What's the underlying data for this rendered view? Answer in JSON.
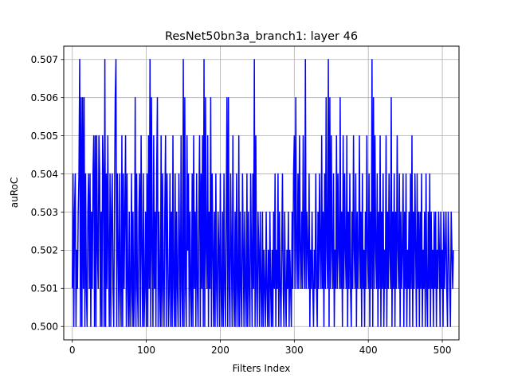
{
  "chart_data": {
    "type": "line",
    "title": "ResNet50bn3a_branch1: layer 46",
    "xlabel": "Filters Index",
    "ylabel": "auRoC",
    "xlim": [
      -11.55,
      522.55
    ],
    "ylim": [
      0.49965,
      0.50735
    ],
    "xticks": [
      0,
      100,
      200,
      300,
      400,
      500
    ],
    "yticks": [
      0.5,
      0.501,
      0.502,
      0.503,
      0.504,
      0.505,
      0.506,
      0.507
    ],
    "ytick_labels": [
      "0.500",
      "0.501",
      "0.502",
      "0.503",
      "0.504",
      "0.505",
      "0.506",
      "0.507"
    ],
    "grid": true,
    "line_color": "#0000ff",
    "series": [
      {
        "values": [
          0.501,
          0.504,
          0.5,
          0.503,
          0.504,
          0.5,
          0.502,
          0.501,
          0.503,
          0.504,
          0.507,
          0.5,
          0.506,
          0.5,
          0.506,
          0.501,
          0.506,
          0.5,
          0.504,
          0.501,
          0.5,
          0.503,
          0.504,
          0.501,
          0.504,
          0.5,
          0.503,
          0.501,
          0.504,
          0.505,
          0.5,
          0.505,
          0.5,
          0.505,
          0.502,
          0.501,
          0.505,
          0.504,
          0.5,
          0.503,
          0.5,
          0.505,
          0.504,
          0.5,
          0.507,
          0.5,
          0.504,
          0.501,
          0.505,
          0.502,
          0.5,
          0.504,
          0.5,
          0.503,
          0.504,
          0.501,
          0.5,
          0.503,
          0.506,
          0.507,
          0.5,
          0.504,
          0.502,
          0.5,
          0.504,
          0.501,
          0.5,
          0.505,
          0.5,
          0.504,
          0.501,
          0.503,
          0.505,
          0.5,
          0.504,
          0.501,
          0.5,
          0.503,
          0.5,
          0.501,
          0.504,
          0.5,
          0.503,
          0.5,
          0.501,
          0.506,
          0.5,
          0.504,
          0.501,
          0.5,
          0.503,
          0.504,
          0.5,
          0.505,
          0.502,
          0.5,
          0.504,
          0.5,
          0.501,
          0.503,
          0.5,
          0.504,
          0.5,
          0.505,
          0.501,
          0.507,
          0.5,
          0.506,
          0.502,
          0.5,
          0.505,
          0.501,
          0.503,
          0.5,
          0.504,
          0.506,
          0.5,
          0.503,
          0.501,
          0.5,
          0.505,
          0.5,
          0.504,
          0.501,
          0.5,
          0.503,
          0.505,
          0.5,
          0.504,
          0.502,
          0.5,
          0.501,
          0.504,
          0.5,
          0.503,
          0.5,
          0.505,
          0.501,
          0.5,
          0.504,
          0.5,
          0.503,
          0.501,
          0.5,
          0.504,
          0.502,
          0.5,
          0.505,
          0.501,
          0.5,
          0.507,
          0.5,
          0.506,
          0.501,
          0.5,
          0.505,
          0.502,
          0.504,
          0.5,
          0.503,
          0.501,
          0.5,
          0.504,
          0.5,
          0.505,
          0.501,
          0.503,
          0.5,
          0.504,
          0.501,
          0.5,
          0.503,
          0.505,
          0.5,
          0.504,
          0.501,
          0.505,
          0.5,
          0.507,
          0.5,
          0.506,
          0.502,
          0.501,
          0.505,
          0.5,
          0.503,
          0.501,
          0.506,
          0.5,
          0.504,
          0.502,
          0.5,
          0.503,
          0.5,
          0.504,
          0.501,
          0.5,
          0.503,
          0.502,
          0.5,
          0.504,
          0.501,
          0.5,
          0.503,
          0.5,
          0.504,
          0.501,
          0.5,
          0.503,
          0.506,
          0.5,
          0.506,
          0.501,
          0.5,
          0.504,
          0.502,
          0.5,
          0.505,
          0.501,
          0.5,
          0.503,
          0.5,
          0.504,
          0.501,
          0.5,
          0.505,
          0.5,
          0.503,
          0.501,
          0.5,
          0.504,
          0.502,
          0.5,
          0.503,
          0.501,
          0.5,
          0.504,
          0.5,
          0.503,
          0.501,
          0.5,
          0.504,
          0.502,
          0.5,
          0.504,
          0.501,
          0.507,
          0.5,
          0.505,
          0.501,
          0.5,
          0.503,
          0.502,
          0.5,
          0.503,
          0.501,
          0.5,
          0.503,
          0.5,
          0.502,
          0.501,
          0.5,
          0.503,
          0.501,
          0.5,
          0.502,
          0.5,
          0.503,
          0.501,
          0.5,
          0.502,
          0.5,
          0.503,
          0.501,
          0.504,
          0.5,
          0.502,
          0.501,
          0.504,
          0.5,
          0.503,
          0.501,
          0.5,
          0.502,
          0.504,
          0.501,
          0.5,
          0.503,
          0.501,
          0.5,
          0.502,
          0.501,
          0.503,
          0.5,
          0.502,
          0.501,
          0.5,
          0.503,
          0.501,
          0.504,
          0.505,
          0.501,
          0.506,
          0.502,
          0.501,
          0.504,
          0.501,
          0.505,
          0.502,
          0.501,
          0.503,
          0.501,
          0.505,
          0.502,
          0.501,
          0.507,
          0.501,
          0.503,
          0.502,
          0.501,
          0.504,
          0.5,
          0.502,
          0.501,
          0.503,
          0.501,
          0.5,
          0.502,
          0.501,
          0.504,
          0.501,
          0.5,
          0.503,
          0.501,
          0.504,
          0.502,
          0.501,
          0.505,
          0.501,
          0.503,
          0.5,
          0.504,
          0.501,
          0.506,
          0.502,
          0.501,
          0.507,
          0.5,
          0.506,
          0.501,
          0.505,
          0.502,
          0.501,
          0.504,
          0.5,
          0.502,
          0.501,
          0.505,
          0.501,
          0.504,
          0.502,
          0.501,
          0.506,
          0.501,
          0.503,
          0.5,
          0.505,
          0.501,
          0.504,
          0.502,
          0.501,
          0.505,
          0.5,
          0.503,
          0.501,
          0.504,
          0.501,
          0.5,
          0.503,
          0.501,
          0.505,
          0.502,
          0.501,
          0.504,
          0.5,
          0.503,
          0.501,
          0.502,
          0.505,
          0.501,
          0.503,
          0.5,
          0.504,
          0.501,
          0.502,
          0.5,
          0.503,
          0.501,
          0.505,
          0.502,
          0.501,
          0.504,
          0.5,
          0.503,
          0.501,
          0.507,
          0.5,
          0.506,
          0.501,
          0.505,
          0.502,
          0.501,
          0.504,
          0.5,
          0.503,
          0.501,
          0.505,
          0.5,
          0.503,
          0.501,
          0.504,
          0.5,
          0.502,
          0.501,
          0.505,
          0.5,
          0.503,
          0.501,
          0.504,
          0.502,
          0.501,
          0.506,
          0.5,
          0.503,
          0.501,
          0.504,
          0.5,
          0.503,
          0.501,
          0.505,
          0.502,
          0.501,
          0.504,
          0.5,
          0.503,
          0.501,
          0.502,
          0.504,
          0.5,
          0.503,
          0.501,
          0.504,
          0.5,
          0.502,
          0.501,
          0.503,
          0.5,
          0.504,
          0.501,
          0.505,
          0.5,
          0.503,
          0.501,
          0.504,
          0.502,
          0.5,
          0.504,
          0.501,
          0.503,
          0.5,
          0.503,
          0.501,
          0.504,
          0.5,
          0.502,
          0.501,
          0.503,
          0.5,
          0.504,
          0.501,
          0.5,
          0.503,
          0.501,
          0.504,
          0.5,
          0.503,
          0.501,
          0.502,
          0.5,
          0.503,
          0.501,
          0.503,
          0.5,
          0.502,
          0.501,
          0.503,
          0.502,
          0.5,
          0.503,
          0.501,
          0.502,
          0.5,
          0.503,
          0.501,
          0.502,
          0.503,
          0.501,
          0.5,
          0.503,
          0.502,
          0.501,
          0.5,
          0.503,
          0.502,
          0.501,
          0.502
        ]
      }
    ]
  }
}
